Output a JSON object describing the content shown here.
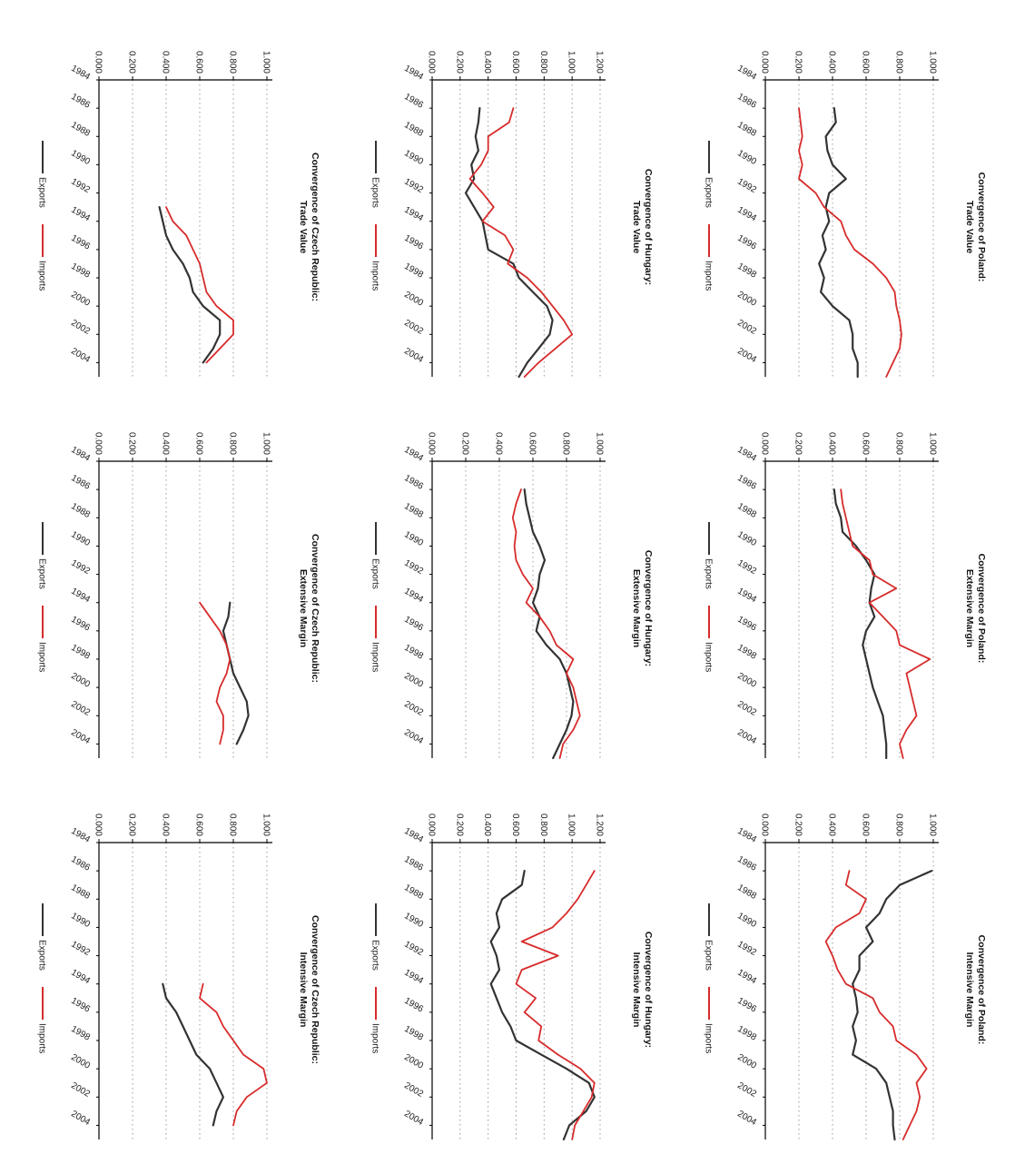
{
  "colors": {
    "exports": "#333333",
    "imports": "#d72b2b"
  },
  "legend": {
    "exports_label": "Exports",
    "imports_label": "Imports"
  },
  "chart_data": [
    {
      "type": "line",
      "title": "Convergence of Poland:",
      "subtitle": "Trade Value",
      "x_ticks": [
        "1984",
        "1986",
        "1988",
        "1990",
        "1992",
        "1994",
        "1996",
        "1998",
        "2000",
        "2002",
        "2004"
      ],
      "y_ticks": [
        "0.000",
        "0.200",
        "0.400",
        "0.600",
        "0.800",
        "1.000"
      ],
      "ylim": [
        0,
        1.0
      ],
      "xlim": [
        1984,
        2005
      ],
      "grid": true,
      "legend_position": "bottom",
      "x": [
        1986,
        1987,
        1988,
        1989,
        1990,
        1991,
        1992,
        1993,
        1994,
        1995,
        1996,
        1997,
        1998,
        1999,
        2000,
        2001,
        2002,
        2003,
        2004,
        2005
      ],
      "series": [
        {
          "name": "Exports",
          "values": [
            0.41,
            0.42,
            0.36,
            0.37,
            0.4,
            0.48,
            0.38,
            0.36,
            0.38,
            0.34,
            0.36,
            0.32,
            0.35,
            0.33,
            0.4,
            0.5,
            0.52,
            0.52,
            0.55,
            0.55
          ]
        },
        {
          "name": "Imports",
          "values": [
            0.2,
            0.21,
            0.22,
            0.2,
            0.22,
            0.2,
            0.3,
            0.35,
            0.45,
            0.48,
            0.53,
            0.64,
            0.72,
            0.77,
            0.78,
            0.8,
            0.81,
            0.8,
            0.76,
            0.72
          ]
        }
      ]
    },
    {
      "type": "line",
      "title": "Convergence of Poland:",
      "subtitle": "Extensive Margin",
      "x_ticks": [
        "1984",
        "1986",
        "1988",
        "1990",
        "1992",
        "1994",
        "1996",
        "1998",
        "2000",
        "2002",
        "2004"
      ],
      "y_ticks": [
        "0.000",
        "0.200",
        "0.400",
        "0.600",
        "0.800",
        "1.000"
      ],
      "ylim": [
        0,
        1.0
      ],
      "xlim": [
        1984,
        2005
      ],
      "grid": true,
      "legend_position": "bottom",
      "x": [
        1986,
        1987,
        1988,
        1989,
        1990,
        1991,
        1992,
        1993,
        1994,
        1995,
        1996,
        1997,
        1998,
        1999,
        2000,
        2001,
        2002,
        2003,
        2004,
        2005
      ],
      "series": [
        {
          "name": "Exports",
          "values": [
            0.41,
            0.42,
            0.45,
            0.46,
            0.54,
            0.6,
            0.65,
            0.63,
            0.62,
            0.65,
            0.6,
            0.58,
            0.6,
            0.62,
            0.64,
            0.67,
            0.7,
            0.71,
            0.72,
            0.72
          ]
        },
        {
          "name": "Imports",
          "values": [
            0.45,
            0.46,
            0.48,
            0.5,
            0.52,
            0.62,
            0.64,
            0.78,
            0.62,
            0.7,
            0.78,
            0.8,
            0.98,
            0.84,
            0.86,
            0.88,
            0.9,
            0.84,
            0.8,
            0.82
          ]
        }
      ]
    },
    {
      "type": "line",
      "title": "Convergence of Poland:",
      "subtitle": "Intensive Margin",
      "x_ticks": [
        "1984",
        "1986",
        "1988",
        "1990",
        "1992",
        "1994",
        "1996",
        "1998",
        "2000",
        "2002",
        "2004"
      ],
      "y_ticks": [
        "0.000",
        "0.200",
        "0.400",
        "0.600",
        "0.800",
        "1.000"
      ],
      "ylim": [
        0,
        1.0
      ],
      "xlim": [
        1984,
        2005
      ],
      "grid": true,
      "legend_position": "bottom",
      "x": [
        1986,
        1987,
        1988,
        1989,
        1990,
        1991,
        1992,
        1993,
        1994,
        1995,
        1996,
        1997,
        1998,
        1999,
        2000,
        2001,
        2002,
        2003,
        2004,
        2005
      ],
      "series": [
        {
          "name": "Exports",
          "values": [
            0.99,
            0.8,
            0.72,
            0.68,
            0.6,
            0.64,
            0.56,
            0.56,
            0.52,
            0.54,
            0.55,
            0.52,
            0.54,
            0.52,
            0.66,
            0.72,
            0.74,
            0.76,
            0.76,
            0.77
          ]
        },
        {
          "name": "Imports",
          "values": [
            0.5,
            0.48,
            0.6,
            0.56,
            0.42,
            0.36,
            0.4,
            0.43,
            0.48,
            0.64,
            0.68,
            0.76,
            0.78,
            0.9,
            0.96,
            0.9,
            0.92,
            0.9,
            0.86,
            0.82
          ]
        }
      ]
    },
    {
      "type": "line",
      "title": "Convergence of Hungary:",
      "subtitle": "Trade Value",
      "x_ticks": [
        "1984",
        "1986",
        "1988",
        "1990",
        "1992",
        "1994",
        "1996",
        "1998",
        "2000",
        "2002",
        "2004"
      ],
      "y_ticks": [
        "0.000",
        "0.200",
        "0.400",
        "0.600",
        "0.800",
        "1.000",
        "1.200"
      ],
      "ylim": [
        0,
        1.2
      ],
      "xlim": [
        1984,
        2005
      ],
      "grid": true,
      "legend_position": "bottom",
      "x": [
        1986,
        1987,
        1988,
        1989,
        1990,
        1991,
        1992,
        1993,
        1994,
        1995,
        1996,
        1997,
        1998,
        1999,
        2000,
        2001,
        2002,
        2003,
        2004,
        2005
      ],
      "series": [
        {
          "name": "Exports",
          "values": [
            0.34,
            0.33,
            0.31,
            0.33,
            0.28,
            0.3,
            0.24,
            0.3,
            0.36,
            0.38,
            0.4,
            0.58,
            0.62,
            0.72,
            0.82,
            0.86,
            0.84,
            0.76,
            0.68,
            0.62
          ]
        },
        {
          "name": "Imports",
          "values": [
            0.58,
            0.55,
            0.4,
            0.4,
            0.35,
            0.27,
            0.36,
            0.44,
            0.36,
            0.52,
            0.58,
            0.54,
            0.68,
            0.78,
            0.86,
            0.94,
            1.0,
            0.88,
            0.76,
            0.66
          ]
        }
      ]
    },
    {
      "type": "line",
      "title": "Convergence of Hungary:",
      "subtitle": "Extensive Margin",
      "x_ticks": [
        "1984",
        "1986",
        "1988",
        "1990",
        "1992",
        "1994",
        "1996",
        "1998",
        "2000",
        "2002",
        "2004"
      ],
      "y_ticks": [
        "0.000",
        "0.200",
        "0.400",
        "0.600",
        "0.800",
        "1.000"
      ],
      "ylim": [
        0,
        1.0
      ],
      "xlim": [
        1984,
        2005
      ],
      "grid": true,
      "legend_position": "bottom",
      "x": [
        1986,
        1987,
        1988,
        1989,
        1990,
        1991,
        1992,
        1993,
        1994,
        1995,
        1996,
        1997,
        1998,
        1999,
        2000,
        2001,
        2002,
        2003,
        2004,
        2005
      ],
      "series": [
        {
          "name": "Exports",
          "values": [
            0.55,
            0.56,
            0.58,
            0.6,
            0.64,
            0.67,
            0.64,
            0.63,
            0.6,
            0.64,
            0.62,
            0.68,
            0.76,
            0.8,
            0.82,
            0.84,
            0.83,
            0.8,
            0.76,
            0.72
          ]
        },
        {
          "name": "Imports",
          "values": [
            0.53,
            0.5,
            0.48,
            0.5,
            0.49,
            0.5,
            0.54,
            0.6,
            0.56,
            0.64,
            0.7,
            0.74,
            0.84,
            0.8,
            0.84,
            0.86,
            0.88,
            0.84,
            0.78,
            0.76
          ]
        }
      ]
    },
    {
      "type": "line",
      "title": "Convergence of Hungary:",
      "subtitle": "Intensive Margin",
      "x_ticks": [
        "1984",
        "1986",
        "1988",
        "1990",
        "1992",
        "1994",
        "1996",
        "1998",
        "2000",
        "2002",
        "2004"
      ],
      "y_ticks": [
        "0.000",
        "0.200",
        "0.400",
        "0.600",
        "0.800",
        "1.000",
        "1.200"
      ],
      "ylim": [
        0,
        1.2
      ],
      "xlim": [
        1984,
        2005
      ],
      "grid": true,
      "legend_position": "bottom",
      "x": [
        1986,
        1987,
        1988,
        1989,
        1990,
        1991,
        1992,
        1993,
        1994,
        1995,
        1996,
        1997,
        1998,
        1999,
        2000,
        2001,
        2002,
        2003,
        2004,
        2005
      ],
      "series": [
        {
          "name": "Exports",
          "values": [
            0.66,
            0.64,
            0.5,
            0.46,
            0.48,
            0.42,
            0.46,
            0.48,
            0.42,
            0.46,
            0.5,
            0.56,
            0.6,
            0.78,
            0.96,
            1.12,
            1.16,
            1.1,
            0.98,
            0.94
          ]
        },
        {
          "name": "Imports",
          "values": [
            1.16,
            1.1,
            1.04,
            0.96,
            0.86,
            0.64,
            0.9,
            0.64,
            0.6,
            0.74,
            0.66,
            0.78,
            0.76,
            0.9,
            1.06,
            1.16,
            1.14,
            1.08,
            1.02,
            1.0
          ]
        }
      ]
    },
    {
      "type": "line",
      "title": "Convergence of Czech Republic:",
      "subtitle": "Trade Value",
      "x_ticks": [
        "1984",
        "1986",
        "1988",
        "1990",
        "1992",
        "1994",
        "1996",
        "1998",
        "2000",
        "2002",
        "2004"
      ],
      "y_ticks": [
        "0.000",
        "0.200",
        "0.400",
        "0.600",
        "0.800",
        "1.000"
      ],
      "ylim": [
        0,
        1.0
      ],
      "xlim": [
        1984,
        2005
      ],
      "grid": true,
      "legend_position": "bottom",
      "x": [
        1993,
        1994,
        1995,
        1996,
        1997,
        1998,
        1999,
        2000,
        2001,
        2002,
        2003,
        2004
      ],
      "series": [
        {
          "name": "Exports",
          "values": [
            0.36,
            0.38,
            0.4,
            0.44,
            0.5,
            0.54,
            0.56,
            0.62,
            0.72,
            0.72,
            0.68,
            0.62
          ]
        },
        {
          "name": "Imports",
          "values": [
            0.4,
            0.44,
            0.52,
            0.56,
            0.6,
            0.62,
            0.64,
            0.7,
            0.8,
            0.8,
            0.72,
            0.64
          ]
        }
      ]
    },
    {
      "type": "line",
      "title": "Convergence of Czech Republic:",
      "subtitle": "Extensive Margin",
      "x_ticks": [
        "1984",
        "1986",
        "1988",
        "1990",
        "1992",
        "1994",
        "1996",
        "1998",
        "2000",
        "2002",
        "2004"
      ],
      "y_ticks": [
        "0.000",
        "0.200",
        "0.400",
        "0.600",
        "0.800",
        "1.000"
      ],
      "ylim": [
        0,
        1.0
      ],
      "xlim": [
        1984,
        2005
      ],
      "grid": true,
      "legend_position": "bottom",
      "x": [
        1994,
        1995,
        1996,
        1997,
        1998,
        1999,
        2000,
        2001,
        2002,
        2003,
        2004
      ],
      "series": [
        {
          "name": "Exports",
          "values": [
            0.78,
            0.77,
            0.74,
            0.76,
            0.78,
            0.8,
            0.84,
            0.88,
            0.89,
            0.86,
            0.82
          ]
        },
        {
          "name": "Imports",
          "values": [
            0.6,
            0.66,
            0.72,
            0.76,
            0.78,
            0.76,
            0.72,
            0.7,
            0.74,
            0.74,
            0.72
          ]
        }
      ]
    },
    {
      "type": "line",
      "title": "Convergence of Czech Republic:",
      "subtitle": "Intensive Margin",
      "x_ticks": [
        "1984",
        "1986",
        "1988",
        "1990",
        "1992",
        "1994",
        "1996",
        "1998",
        "2000",
        "2002",
        "2004"
      ],
      "y_ticks": [
        "0.000",
        "0.200",
        "0.400",
        "0.600",
        "0.800",
        "1.000"
      ],
      "ylim": [
        0,
        1.0
      ],
      "xlim": [
        1984,
        2005
      ],
      "grid": true,
      "legend_position": "bottom",
      "x": [
        1994,
        1995,
        1996,
        1997,
        1998,
        1999,
        2000,
        2001,
        2002,
        2003,
        2004
      ],
      "series": [
        {
          "name": "Exports",
          "values": [
            0.38,
            0.4,
            0.46,
            0.5,
            0.54,
            0.58,
            0.66,
            0.7,
            0.74,
            0.7,
            0.68
          ]
        },
        {
          "name": "Imports",
          "values": [
            0.62,
            0.6,
            0.7,
            0.74,
            0.8,
            0.86,
            0.98,
            1.0,
            0.88,
            0.82,
            0.8
          ]
        }
      ]
    }
  ]
}
